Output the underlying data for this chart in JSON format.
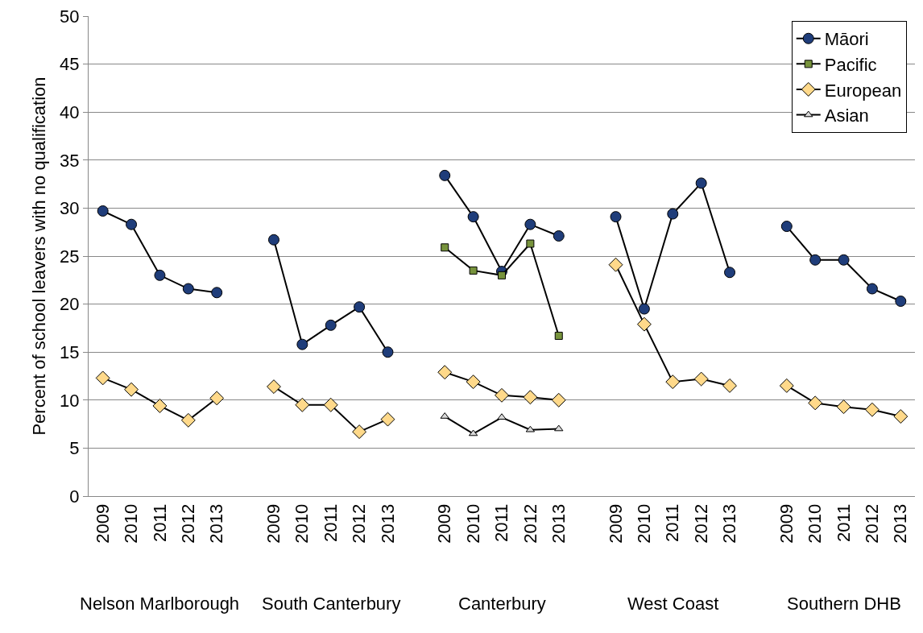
{
  "chart_data": {
    "type": "line",
    "ylabel": "Percent of school leavers with no qualification",
    "categories": [
      "2009",
      "2010",
      "2011",
      "2012",
      "2013",
      null,
      "2009",
      "2010",
      "2011",
      "2012",
      "2013",
      null,
      "2009",
      "2010",
      "2011",
      "2012",
      "2013",
      null,
      "2009",
      "2010",
      "2011",
      "2012",
      "2013",
      null,
      "2009",
      "2010",
      "2011",
      "2012",
      "2013"
    ],
    "annotations": [
      "Nelson Marlborough",
      "South Canterbury",
      "Canterbury",
      "West Coast",
      "Southern DHB"
    ],
    "series": [
      {
        "name": "Māori",
        "color": "#1f3d7a",
        "marker": "circle",
        "values": [
          29.7,
          28.3,
          23.0,
          21.6,
          21.2,
          null,
          26.7,
          15.8,
          17.8,
          19.7,
          15.0,
          null,
          33.4,
          29.1,
          23.4,
          28.3,
          27.1,
          null,
          29.1,
          19.5,
          29.4,
          32.6,
          23.3,
          null,
          28.1,
          24.6,
          24.6,
          21.6,
          20.3
        ]
      },
      {
        "name": "Pacific",
        "color": "#77933c",
        "marker": "square",
        "values": [
          null,
          null,
          null,
          null,
          null,
          null,
          null,
          null,
          null,
          null,
          null,
          null,
          25.9,
          23.5,
          23.0,
          26.3,
          16.7,
          null,
          null,
          null,
          null,
          null,
          null,
          null,
          null,
          null,
          null,
          null,
          null
        ]
      },
      {
        "name": "European",
        "color": "#ffd98a",
        "marker": "diamond",
        "values": [
          12.3,
          11.1,
          9.4,
          7.9,
          10.2,
          null,
          11.4,
          9.5,
          9.5,
          6.7,
          8.0,
          null,
          12.9,
          11.9,
          10.5,
          10.3,
          10.0,
          null,
          24.1,
          17.9,
          11.9,
          12.2,
          11.5,
          null,
          11.5,
          9.7,
          9.3,
          9.0,
          8.3
        ]
      },
      {
        "name": "Asian",
        "color": "#d9d9d9",
        "marker": "triangle",
        "values": [
          null,
          null,
          null,
          null,
          null,
          null,
          null,
          null,
          null,
          null,
          null,
          null,
          8.3,
          6.5,
          8.2,
          6.9,
          7.0,
          null,
          null,
          null,
          null,
          null,
          null,
          null,
          null,
          null,
          null,
          null,
          null
        ]
      }
    ],
    "ylim": [
      0,
      50
    ],
    "yticks": [
      0,
      5,
      10,
      15,
      20,
      25,
      30,
      35,
      40,
      45,
      50
    ],
    "grid": "y",
    "legend": "top right",
    "line_style": "solid"
  }
}
